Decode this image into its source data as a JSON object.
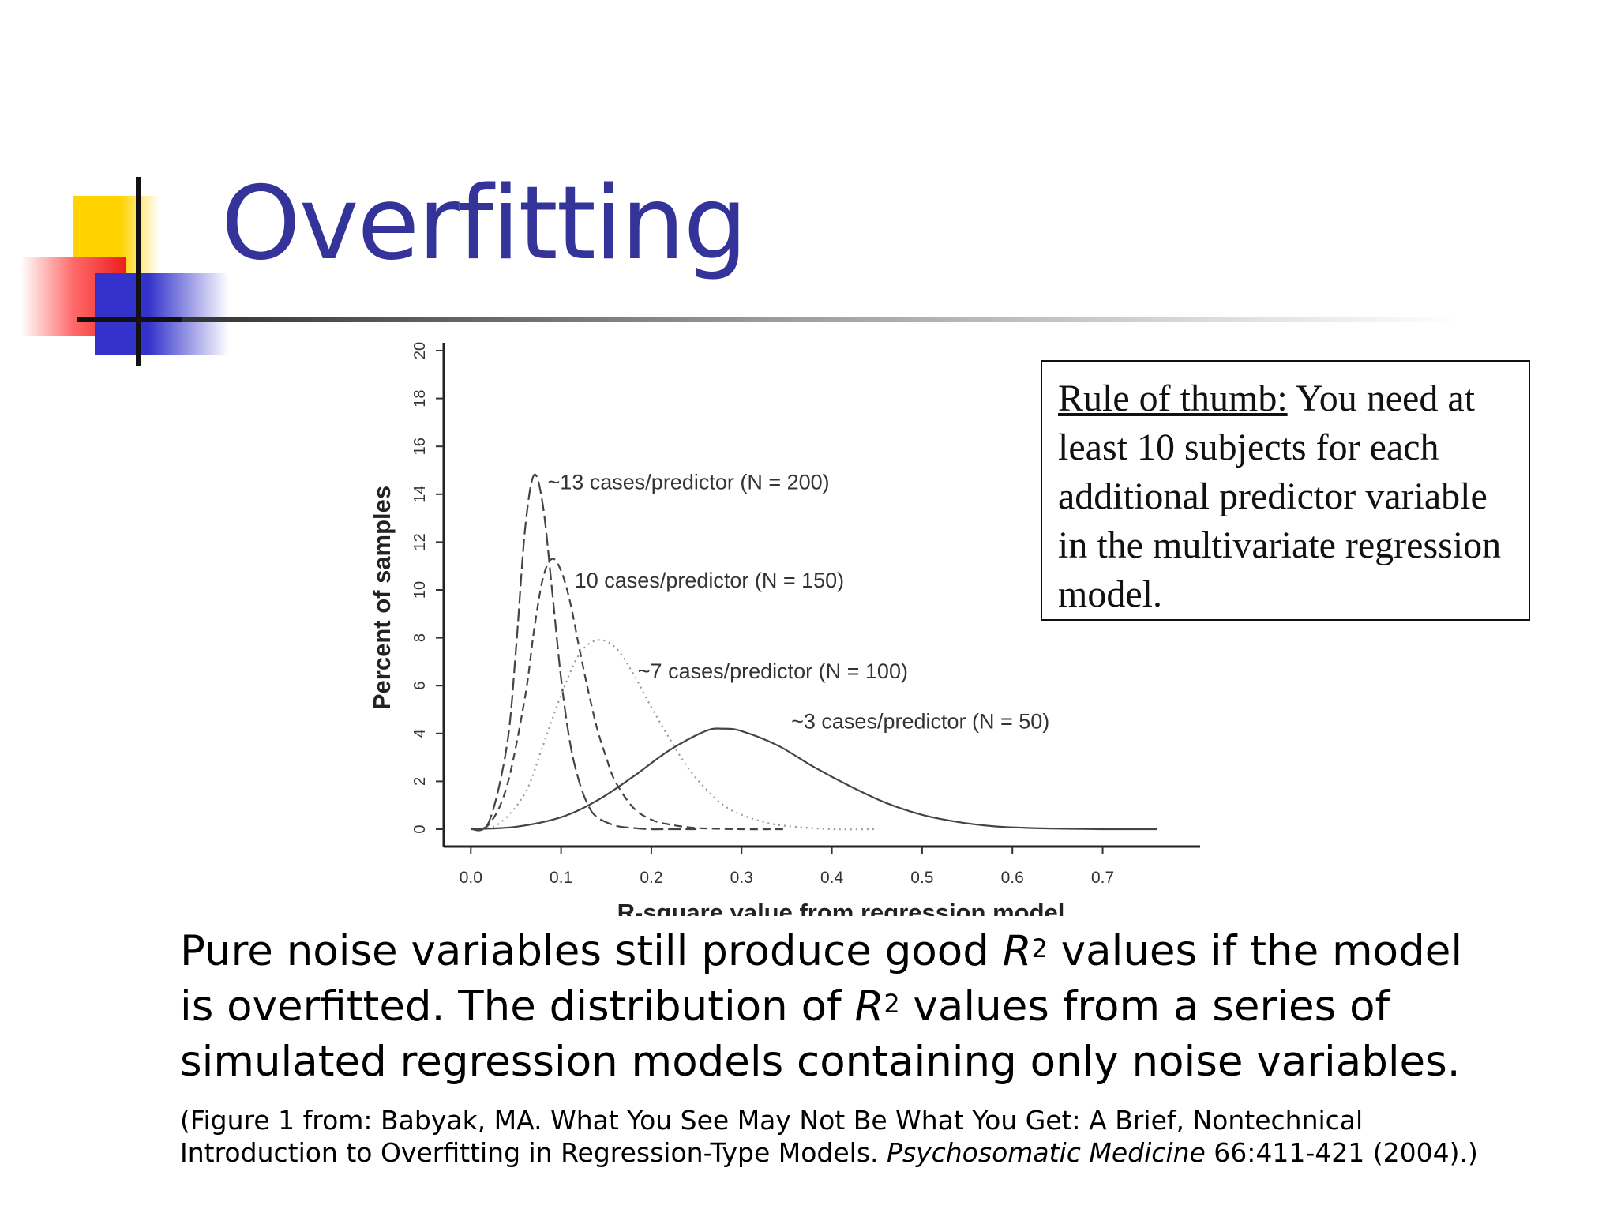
{
  "slide": {
    "title": "Overfitting",
    "rule_box": {
      "lead": "Rule of thumb:",
      "text": " You need at least 10 subjects for each additional predictor variable in the multivariate regression model."
    },
    "caption": {
      "part1": "Pure noise variables still produce good ",
      "r1": "R",
      "sup1": "2",
      "part2": " values if the model is overfitted. The distribution of ",
      "r2": "R",
      "sup2": "2",
      "part3": " values from a series of simulated regression models containing only noise variables."
    },
    "citation": {
      "part1": "(Figure 1 from: Babyak, MA. What You See May Not Be What You Get: A Brief, Nontechnical Introduction to Overfitting in Regression-Type Models. ",
      "journal": "Psychosomatic Medicine",
      "part2": " 66:411-421 (2004).)"
    }
  },
  "chart_data": {
    "type": "line",
    "xlabel": "R-square value from regression model",
    "ylabel": "Percent of samples",
    "xlim": [
      -0.03,
      0.78
    ],
    "ylim": [
      0,
      20
    ],
    "xticks": [
      "0.0",
      "0.1",
      "0.2",
      "0.3",
      "0.4",
      "0.5",
      "0.6",
      "0.7"
    ],
    "xtick_values": [
      0.0,
      0.1,
      0.2,
      0.3,
      0.4,
      0.5,
      0.6,
      0.7
    ],
    "yticks": [
      "0",
      "2",
      "4",
      "6",
      "8",
      "10",
      "12",
      "14",
      "16",
      "18",
      "20"
    ],
    "ytick_values": [
      0,
      2,
      4,
      6,
      8,
      10,
      12,
      14,
      16,
      18,
      20
    ],
    "grid": false,
    "series": [
      {
        "name": "~13 cases/predictor (N = 200)",
        "style": "longdash",
        "x": [
          0.0,
          0.02,
          0.04,
          0.05,
          0.06,
          0.07,
          0.08,
          0.09,
          0.1,
          0.11,
          0.12,
          0.13,
          0.14,
          0.16,
          0.18,
          0.2,
          0.22,
          0.25
        ],
        "y": [
          0,
          0.3,
          3.5,
          7.5,
          12.5,
          14.8,
          13.5,
          10,
          6.3,
          3.6,
          2,
          1,
          0.5,
          0.15,
          0.05,
          0,
          0,
          0
        ]
      },
      {
        "name": "10 cases/predictor (N = 150)",
        "style": "dash",
        "x": [
          0.0,
          0.02,
          0.04,
          0.06,
          0.07,
          0.08,
          0.09,
          0.1,
          0.11,
          0.12,
          0.13,
          0.14,
          0.15,
          0.16,
          0.18,
          0.2,
          0.22,
          0.25,
          0.3,
          0.35
        ],
        "y": [
          0,
          0.2,
          1.8,
          5.5,
          8.3,
          10.5,
          11.3,
          10.8,
          9.5,
          7.6,
          5.8,
          4.2,
          3,
          2,
          0.9,
          0.4,
          0.2,
          0.05,
          0,
          0
        ]
      },
      {
        "name": "~7 cases/predictor (N = 100)",
        "style": "dotted",
        "x": [
          0.0,
          0.03,
          0.06,
          0.08,
          0.1,
          0.12,
          0.14,
          0.16,
          0.18,
          0.2,
          0.22,
          0.24,
          0.26,
          0.28,
          0.3,
          0.33,
          0.36,
          0.4,
          0.45
        ],
        "y": [
          0,
          0.2,
          1.5,
          3.5,
          5.6,
          7.3,
          7.9,
          7.6,
          6.5,
          5.1,
          3.8,
          2.6,
          1.7,
          1,
          0.6,
          0.25,
          0.1,
          0,
          0
        ]
      },
      {
        "name": "~3 cases/predictor (N = 50)",
        "style": "solid",
        "x": [
          0.0,
          0.05,
          0.1,
          0.14,
          0.18,
          0.22,
          0.26,
          0.28,
          0.3,
          0.34,
          0.38,
          0.42,
          0.46,
          0.5,
          0.54,
          0.58,
          0.62,
          0.66,
          0.7,
          0.76
        ],
        "y": [
          0,
          0.1,
          0.5,
          1.2,
          2.2,
          3.3,
          4.1,
          4.2,
          4.1,
          3.5,
          2.6,
          1.8,
          1.1,
          0.6,
          0.3,
          0.12,
          0.05,
          0.02,
          0,
          0
        ]
      }
    ],
    "annotations": [
      {
        "text": "~13 cases/predictor (N = 200)",
        "x": 0.085,
        "y": 14.2
      },
      {
        "text": "10 cases/predictor (N = 150)",
        "x": 0.115,
        "y": 10.1
      },
      {
        "text": "~7 cases/predictor (N = 100)",
        "x": 0.185,
        "y": 6.3
      },
      {
        "text": "~3 cases/predictor (N = 50)",
        "x": 0.355,
        "y": 4.2
      }
    ]
  }
}
